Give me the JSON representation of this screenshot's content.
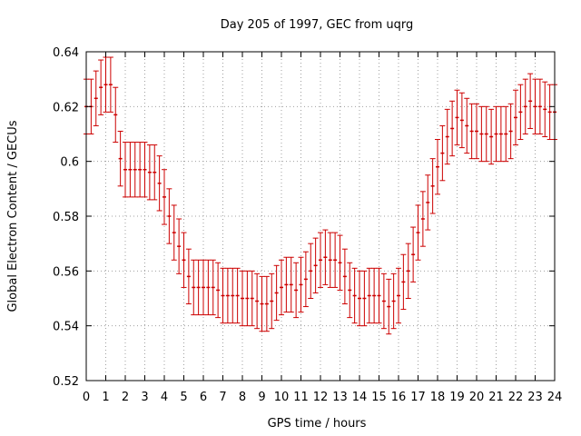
{
  "chart_data": {
    "type": "line",
    "title": "Day 205 of 1997, GEC from uqrg",
    "xlabel": "GPS time / hours",
    "ylabel": "Global Electron Content / GECUs",
    "xlim": [
      0,
      24
    ],
    "ylim": [
      0.52,
      0.64
    ],
    "grid": true,
    "series_color": "#cc0000",
    "grid_color": "#a0a0a0",
    "x_ticks": [
      "0",
      "1",
      "2",
      "3",
      "4",
      "5",
      "6",
      "7",
      "8",
      "9",
      "10",
      "11",
      "12",
      "13",
      "14",
      "15",
      "16",
      "17",
      "18",
      "19",
      "20",
      "21",
      "22",
      "23",
      "24"
    ],
    "y_ticks": [
      "0.52",
      "0.54",
      "0.56",
      "0.58",
      "0.6",
      "0.62",
      "0.64"
    ],
    "error_bar": 0.01,
    "series": [
      {
        "name": "GEC",
        "x": [
          0.0,
          0.25,
          0.5,
          0.75,
          1.0,
          1.25,
          1.5,
          1.75,
          2.0,
          2.25,
          2.5,
          2.75,
          3.0,
          3.25,
          3.5,
          3.75,
          4.0,
          4.25,
          4.5,
          4.75,
          5.0,
          5.25,
          5.5,
          5.75,
          6.0,
          6.25,
          6.5,
          6.75,
          7.0,
          7.25,
          7.5,
          7.75,
          8.0,
          8.25,
          8.5,
          8.75,
          9.0,
          9.25,
          9.5,
          9.75,
          10.0,
          10.25,
          10.5,
          10.75,
          11.0,
          11.25,
          11.5,
          11.75,
          12.0,
          12.25,
          12.5,
          12.75,
          13.0,
          13.25,
          13.5,
          13.75,
          14.0,
          14.25,
          14.5,
          14.75,
          15.0,
          15.25,
          15.5,
          15.75,
          16.0,
          16.25,
          16.5,
          16.75,
          17.0,
          17.25,
          17.5,
          17.75,
          18.0,
          18.25,
          18.5,
          18.75,
          19.0,
          19.25,
          19.5,
          19.75,
          20.0,
          20.25,
          20.5,
          20.75,
          21.0,
          21.25,
          21.5,
          21.75,
          22.0,
          22.25,
          22.5,
          22.75,
          23.0,
          23.25,
          23.5,
          23.75,
          24.0
        ],
        "values": [
          0.62,
          0.62,
          0.623,
          0.627,
          0.628,
          0.628,
          0.617,
          0.601,
          0.597,
          0.597,
          0.597,
          0.597,
          0.597,
          0.596,
          0.596,
          0.592,
          0.587,
          0.58,
          0.574,
          0.569,
          0.564,
          0.558,
          0.554,
          0.554,
          0.554,
          0.554,
          0.554,
          0.553,
          0.551,
          0.551,
          0.551,
          0.551,
          0.55,
          0.55,
          0.55,
          0.549,
          0.548,
          0.548,
          0.549,
          0.552,
          0.554,
          0.555,
          0.555,
          0.553,
          0.555,
          0.557,
          0.56,
          0.562,
          0.564,
          0.565,
          0.564,
          0.564,
          0.563,
          0.558,
          0.553,
          0.551,
          0.55,
          0.55,
          0.551,
          0.551,
          0.551,
          0.549,
          0.547,
          0.549,
          0.551,
          0.556,
          0.56,
          0.566,
          0.574,
          0.579,
          0.585,
          0.591,
          0.598,
          0.603,
          0.609,
          0.612,
          0.616,
          0.615,
          0.613,
          0.611,
          0.611,
          0.61,
          0.61,
          0.609,
          0.61,
          0.61,
          0.61,
          0.611,
          0.616,
          0.618,
          0.62,
          0.622,
          0.62,
          0.62,
          0.619,
          0.618,
          0.618
        ]
      }
    ]
  }
}
